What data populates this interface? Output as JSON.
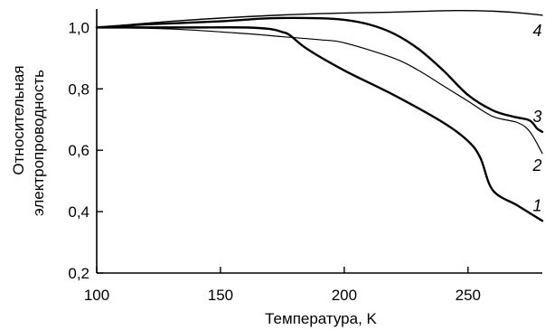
{
  "chart_data": {
    "type": "line",
    "xlabel": "Температура, K",
    "ylabel_lines": [
      "Относительная",
      "электропроводность"
    ],
    "xlim": [
      100,
      280
    ],
    "ylim": [
      0.2,
      1.06
    ],
    "x_ticks": [
      100,
      150,
      200,
      250
    ],
    "x_tick_labels": [
      "100",
      "150",
      "200",
      "250"
    ],
    "y_ticks": [
      0.2,
      0.4,
      0.6,
      0.8,
      1.0
    ],
    "y_tick_labels": [
      "0,2",
      "0,4",
      "0,6",
      "0,8",
      "1,0"
    ],
    "grid": false,
    "line_color": "#000000",
    "series": [
      {
        "name": "1",
        "x": [
          100,
          120,
          140,
          160,
          170,
          175,
          178,
          185,
          200,
          220,
          240,
          250,
          255,
          260,
          270,
          278,
          280
        ],
        "y": [
          1.0,
          1.0,
          1.0,
          1.0,
          0.995,
          0.985,
          0.975,
          0.93,
          0.86,
          0.78,
          0.69,
          0.63,
          0.575,
          0.47,
          0.42,
          0.38,
          0.37
        ],
        "label_x": 278,
        "label_y": 0.42
      },
      {
        "name": "2",
        "x": [
          100,
          130,
          160,
          175,
          190,
          200,
          220,
          230,
          240,
          250,
          260,
          270,
          275,
          280
        ],
        "y": [
          1.0,
          0.995,
          0.98,
          0.97,
          0.96,
          0.95,
          0.9,
          0.86,
          0.81,
          0.76,
          0.71,
          0.69,
          0.66,
          0.59
        ],
        "label_x": 278,
        "label_y": 0.55
      },
      {
        "name": "3",
        "x": [
          100,
          120,
          150,
          170,
          190,
          200,
          210,
          220,
          230,
          240,
          250,
          260,
          268,
          274,
          276,
          278,
          280
        ],
        "y": [
          1.0,
          1.01,
          1.02,
          1.03,
          1.03,
          1.025,
          1.01,
          0.98,
          0.93,
          0.86,
          0.78,
          0.73,
          0.71,
          0.7,
          0.69,
          0.67,
          0.66
        ],
        "label_x": 278,
        "label_y": 0.71
      },
      {
        "name": "4",
        "x": [
          100,
          130,
          160,
          190,
          220,
          245,
          260,
          270,
          280
        ],
        "y": [
          1.0,
          1.02,
          1.035,
          1.045,
          1.05,
          1.055,
          1.053,
          1.048,
          1.04
        ],
        "label_x": 278,
        "label_y": 0.99
      }
    ]
  }
}
